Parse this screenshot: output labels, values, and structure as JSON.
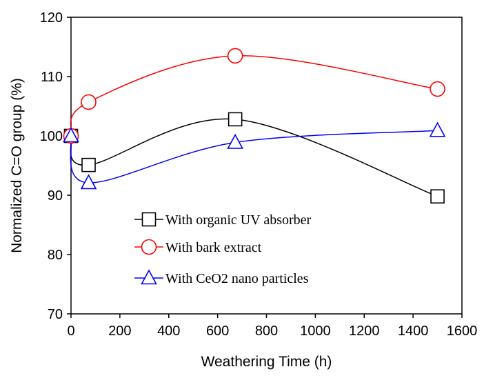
{
  "chart_data": {
    "type": "scatter",
    "xlabel": "Weathering Time (h)",
    "ylabel": "Normalized C=O group (%)",
    "xlim": [
      0,
      1600
    ],
    "ylim": [
      70,
      120
    ],
    "xticks": [
      0,
      200,
      400,
      600,
      800,
      1000,
      1200,
      1400,
      1600
    ],
    "yticks": [
      70,
      80,
      90,
      100,
      110,
      120
    ],
    "x_tick_labels": [
      "0",
      "200",
      "400",
      "600",
      "800",
      "1000",
      "1200",
      "1400",
      "1600"
    ],
    "y_tick_labels": [
      "70",
      "80",
      "90",
      "100",
      "110",
      "120"
    ],
    "grid": false,
    "legend_position": "lower-left inside",
    "series": [
      {
        "name": "With organic UV absorber",
        "color": "#000000",
        "marker": "square",
        "x": [
          0,
          72,
          672,
          1500
        ],
        "y": [
          100,
          95.1,
          102.8,
          89.8
        ]
      },
      {
        "name": "With bark extract",
        "color": "#ff0000",
        "marker": "circle",
        "x": [
          0,
          72,
          672,
          1500
        ],
        "y": [
          100,
          105.7,
          113.5,
          107.9
        ]
      },
      {
        "name": "With CeO2 nano particles",
        "color": "#0000ff",
        "marker": "triangle",
        "x": [
          0,
          72,
          672,
          1500
        ],
        "y": [
          100,
          92.1,
          98.9,
          100.9
        ]
      }
    ]
  }
}
